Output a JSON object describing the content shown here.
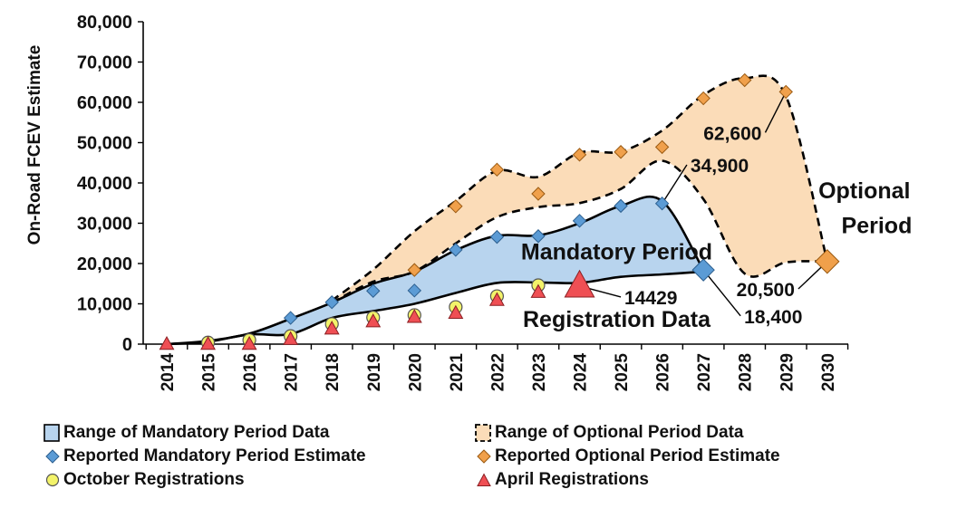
{
  "chart_data": {
    "type": "area",
    "ylabel": "On-Road FCEV Estimate",
    "xlabel": "",
    "ylim": [
      0,
      80000
    ],
    "yticks": [
      0,
      10000,
      20000,
      30000,
      40000,
      50000,
      60000,
      70000,
      80000
    ],
    "ytick_labels": [
      "0",
      "10,000",
      "20,000",
      "30,000",
      "40,000",
      "50,000",
      "60,000",
      "70,000",
      "80,000"
    ],
    "x": [
      "2014",
      "2015",
      "2016",
      "2017",
      "2018",
      "2019",
      "2020",
      "2021",
      "2022",
      "2023",
      "2024",
      "2025",
      "2026",
      "2027",
      "2028",
      "2029",
      "2030"
    ],
    "grid": false,
    "legend_position": "bottom",
    "colors": {
      "mandatory_fill": "#b8d4ee",
      "optional_fill": "#fbdcb8",
      "mandatory_marker": "#5b9bd5",
      "optional_marker": "#f0a04b",
      "october_marker": "#f3f36a",
      "april_marker": "#ef4f54"
    },
    "series": [
      {
        "name": "Range of Mandatory Period Data",
        "kind": "band",
        "upper": [
          {
            "x": "2014",
            "y": 0
          },
          {
            "x": "2015",
            "y": 800
          },
          {
            "x": "2016",
            "y": 2600
          },
          {
            "x": "2017",
            "y": 6300
          },
          {
            "x": "2018",
            "y": 10300
          },
          {
            "x": "2019",
            "y": 15000
          },
          {
            "x": "2020",
            "y": 18000
          },
          {
            "x": "2021",
            "y": 23300
          },
          {
            "x": "2022",
            "y": 26900
          },
          {
            "x": "2023",
            "y": 27000
          },
          {
            "x": "2024",
            "y": 30000
          },
          {
            "x": "2025",
            "y": 34300
          },
          {
            "x": "2026",
            "y": 35500
          },
          {
            "x": "2027",
            "y": 18400
          }
        ],
        "lower": [
          {
            "x": "2014",
            "y": 0
          },
          {
            "x": "2015",
            "y": 600
          },
          {
            "x": "2016",
            "y": 2400
          },
          {
            "x": "2017",
            "y": 2500
          },
          {
            "x": "2018",
            "y": 6500
          },
          {
            "x": "2019",
            "y": 8200
          },
          {
            "x": "2020",
            "y": 10000
          },
          {
            "x": "2021",
            "y": 12700
          },
          {
            "x": "2022",
            "y": 15200
          },
          {
            "x": "2023",
            "y": 15300
          },
          {
            "x": "2024",
            "y": 15200
          },
          {
            "x": "2025",
            "y": 16700
          },
          {
            "x": "2026",
            "y": 17300
          },
          {
            "x": "2027",
            "y": 18000
          }
        ]
      },
      {
        "name": "Range of Optional Period Data",
        "kind": "band",
        "upper": [
          {
            "x": "2018",
            "y": 10800
          },
          {
            "x": "2019",
            "y": 18500
          },
          {
            "x": "2020",
            "y": 28000
          },
          {
            "x": "2021",
            "y": 35500
          },
          {
            "x": "2022",
            "y": 43000
          },
          {
            "x": "2023",
            "y": 41500
          },
          {
            "x": "2024",
            "y": 47500
          },
          {
            "x": "2025",
            "y": 47800
          },
          {
            "x": "2026",
            "y": 53000
          },
          {
            "x": "2027",
            "y": 61800
          },
          {
            "x": "2028",
            "y": 66000
          },
          {
            "x": "2029",
            "y": 61500
          },
          {
            "x": "2030",
            "y": 20500
          }
        ],
        "lower": [
          {
            "x": "2018",
            "y": 10300
          },
          {
            "x": "2019",
            "y": 15500
          },
          {
            "x": "2020",
            "y": 18000
          },
          {
            "x": "2021",
            "y": 25000
          },
          {
            "x": "2022",
            "y": 31500
          },
          {
            "x": "2023",
            "y": 34000
          },
          {
            "x": "2024",
            "y": 35000
          },
          {
            "x": "2025",
            "y": 38500
          },
          {
            "x": "2026",
            "y": 45500
          },
          {
            "x": "2027",
            "y": 36000
          },
          {
            "x": "2028",
            "y": 17500
          },
          {
            "x": "2029",
            "y": 20300
          },
          {
            "x": "2030",
            "y": 20500
          }
        ]
      },
      {
        "name": "Reported Mandatory Period Estimate",
        "kind": "markers",
        "marker": "diamond",
        "points": [
          {
            "x": "2017",
            "y": 6500
          },
          {
            "x": "2018",
            "y": 10400
          },
          {
            "x": "2019",
            "y": 13200
          },
          {
            "x": "2020",
            "y": 13300
          },
          {
            "x": "2021",
            "y": 23400
          },
          {
            "x": "2022",
            "y": 26600
          },
          {
            "x": "2023",
            "y": 26800
          },
          {
            "x": "2024",
            "y": 30600
          },
          {
            "x": "2025",
            "y": 34300
          },
          {
            "x": "2026",
            "y": 34900
          },
          {
            "x": "2027",
            "y": 18400
          }
        ]
      },
      {
        "name": "Reported Optional Period Estimate",
        "kind": "markers",
        "marker": "diamond",
        "points": [
          {
            "x": "2020",
            "y": 18400
          },
          {
            "x": "2021",
            "y": 34200
          },
          {
            "x": "2022",
            "y": 43300
          },
          {
            "x": "2023",
            "y": 37300
          },
          {
            "x": "2024",
            "y": 47000
          },
          {
            "x": "2025",
            "y": 47700
          },
          {
            "x": "2026",
            "y": 48900
          },
          {
            "x": "2027",
            "y": 61000
          },
          {
            "x": "2028",
            "y": 65500
          },
          {
            "x": "2029",
            "y": 62600
          },
          {
            "x": "2030",
            "y": 20500
          }
        ]
      },
      {
        "name": "October Registrations",
        "kind": "markers",
        "marker": "circle",
        "points": [
          {
            "x": "2015",
            "y": 400
          },
          {
            "x": "2016",
            "y": 1000
          },
          {
            "x": "2017",
            "y": 2000
          },
          {
            "x": "2018",
            "y": 5000
          },
          {
            "x": "2019",
            "y": 6600
          },
          {
            "x": "2020",
            "y": 7200
          },
          {
            "x": "2021",
            "y": 9200
          },
          {
            "x": "2022",
            "y": 11900
          },
          {
            "x": "2023",
            "y": 14600
          }
        ]
      },
      {
        "name": "April Registrations",
        "kind": "markers",
        "marker": "triangle",
        "points": [
          {
            "x": "2014",
            "y": 0
          },
          {
            "x": "2015",
            "y": 0
          },
          {
            "x": "2016",
            "y": 0
          },
          {
            "x": "2017",
            "y": 1200
          },
          {
            "x": "2018",
            "y": 3800
          },
          {
            "x": "2019",
            "y": 5600
          },
          {
            "x": "2020",
            "y": 6700
          },
          {
            "x": "2021",
            "y": 7700
          },
          {
            "x": "2022",
            "y": 10900
          },
          {
            "x": "2023",
            "y": 12900
          },
          {
            "x": "2024",
            "y": 14429
          }
        ]
      }
    ],
    "annotations": [
      {
        "text": "Mandatory Period",
        "x": "2024.9",
        "y": 21000,
        "size": 25
      },
      {
        "text": "Registration Data",
        "x": "2024.9",
        "y": 4300,
        "size": 25
      },
      {
        "text": "Optional",
        "x": "2030.9",
        "y": 36200,
        "size": 25
      },
      {
        "text": "Period",
        "x": "2031.2",
        "y": 27500,
        "size": 25
      }
    ],
    "callouts": [
      {
        "text": "34,900",
        "point": {
          "x": "2026",
          "y": 34900
        },
        "label_at": {
          "x": "2026.6",
          "y": 44500
        }
      },
      {
        "text": "62,600",
        "point": {
          "x": "2029",
          "y": 62600
        },
        "label_at": {
          "x": "2028.5",
          "y": 52500
        }
      },
      {
        "text": "20,500",
        "point": {
          "x": "2030",
          "y": 20500
        },
        "label_at": {
          "x": "2029.3",
          "y": 13700
        }
      },
      {
        "text": "18,400",
        "point": {
          "x": "2027",
          "y": 18400
        },
        "label_at": {
          "x": "2027.9",
          "y": 7000
        }
      },
      {
        "text": "14429",
        "point": {
          "x": "2024",
          "y": 14429
        },
        "label_at": {
          "x": "2025",
          "y": 11700
        }
      }
    ],
    "legend": [
      {
        "label": "Range of Mandatory Period Data",
        "symbol": "band-solid"
      },
      {
        "label": "Range of Optional Period Data",
        "symbol": "band-dashed"
      },
      {
        "label": "Reported Mandatory Period Estimate",
        "symbol": "diamond-blue"
      },
      {
        "label": "Reported Optional Period Estimate",
        "symbol": "diamond-orange"
      },
      {
        "label": "October Registrations",
        "symbol": "circle-yellow"
      },
      {
        "label": "April Registrations",
        "symbol": "triangle-red"
      }
    ]
  }
}
